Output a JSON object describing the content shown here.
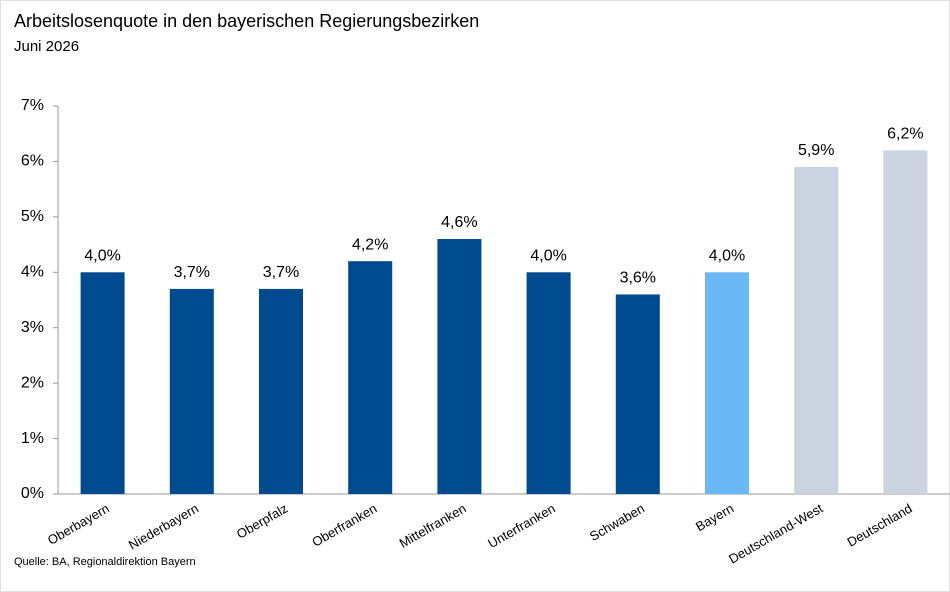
{
  "chart_data": {
    "type": "bar",
    "title": "Arbeitslosenquote in den bayerischen Regierungsbezirken",
    "subtitle": "Juni 2026",
    "source": "Quelle: BA, Regionaldirektion Bayern",
    "categories": [
      "Oberbayern",
      "Niederbayern",
      "Oberpfalz",
      "Oberfranken",
      "Mittelfranken",
      "Unterfranken",
      "Schwaben",
      "Bayern",
      "Deutschland-West",
      "Deutschland"
    ],
    "values": [
      4.0,
      3.7,
      3.7,
      4.2,
      4.6,
      4.0,
      3.6,
      4.0,
      5.9,
      6.2
    ],
    "value_labels": [
      "4,0%",
      "3,7%",
      "3,7%",
      "4,2%",
      "4,6%",
      "4,0%",
      "3,6%",
      "4,0%",
      "5,9%",
      "6,2%"
    ],
    "colors": [
      "#004a8f",
      "#004a8f",
      "#004a8f",
      "#004a8f",
      "#004a8f",
      "#004a8f",
      "#004a8f",
      "#6bb8f7",
      "#cbd3e1",
      "#cbd3e1"
    ],
    "ylim": [
      0,
      7
    ],
    "yticks": [
      {
        "value": 0,
        "label": "0%"
      },
      {
        "value": 1,
        "label": "1%"
      },
      {
        "value": 2,
        "label": "2%"
      },
      {
        "value": 3,
        "label": "3%"
      },
      {
        "value": 4,
        "label": "4%"
      },
      {
        "value": 5,
        "label": "5%"
      },
      {
        "value": 6,
        "label": "6%"
      },
      {
        "value": 7,
        "label": "7%"
      }
    ],
    "grid": false
  }
}
